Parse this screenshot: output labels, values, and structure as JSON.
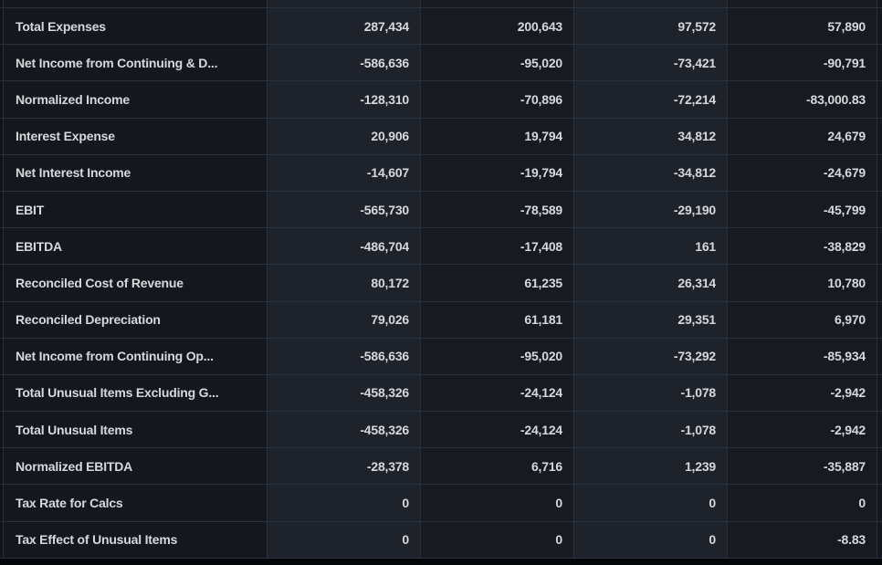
{
  "theme": {
    "background": "#04060a",
    "label_column_bg": "#14171d",
    "value_column_light_bg": "#1e222b",
    "value_column_dark_bg": "#171a21",
    "divider": "#2b313c",
    "text": "#d6d8db"
  },
  "table": {
    "column_count": 4,
    "rows": [
      {
        "label": "Total Expenses",
        "values": [
          "287,434",
          "200,643",
          "97,572",
          "57,890"
        ]
      },
      {
        "label": "Net Income from Continuing & D...",
        "values": [
          "-586,636",
          "-95,020",
          "-73,421",
          "-90,791"
        ]
      },
      {
        "label": "Normalized Income",
        "values": [
          "-128,310",
          "-70,896",
          "-72,214",
          "-83,000.83"
        ]
      },
      {
        "label": "Interest Expense",
        "values": [
          "20,906",
          "19,794",
          "34,812",
          "24,679"
        ]
      },
      {
        "label": "Net Interest Income",
        "values": [
          "-14,607",
          "-19,794",
          "-34,812",
          "-24,679"
        ]
      },
      {
        "label": "EBIT",
        "values": [
          "-565,730",
          "-78,589",
          "-29,190",
          "-45,799"
        ]
      },
      {
        "label": "EBITDA",
        "values": [
          "-486,704",
          "-17,408",
          "161",
          "-38,829"
        ]
      },
      {
        "label": "Reconciled Cost of Revenue",
        "values": [
          "80,172",
          "61,235",
          "26,314",
          "10,780"
        ]
      },
      {
        "label": "Reconciled Depreciation",
        "values": [
          "79,026",
          "61,181",
          "29,351",
          "6,970"
        ]
      },
      {
        "label": "Net Income from Continuing Op...",
        "values": [
          "-586,636",
          "-95,020",
          "-73,292",
          "-85,934"
        ]
      },
      {
        "label": "Total Unusual Items Excluding G...",
        "values": [
          "-458,326",
          "-24,124",
          "-1,078",
          "-2,942"
        ]
      },
      {
        "label": "Total Unusual Items",
        "values": [
          "-458,326",
          "-24,124",
          "-1,078",
          "-2,942"
        ]
      },
      {
        "label": "Normalized EBITDA",
        "values": [
          "-28,378",
          "6,716",
          "1,239",
          "-35,887"
        ]
      },
      {
        "label": "Tax Rate for Calcs",
        "values": [
          "0",
          "0",
          "0",
          "0"
        ]
      },
      {
        "label": "Tax Effect of Unusual Items",
        "values": [
          "0",
          "0",
          "0",
          "-8.83"
        ]
      }
    ]
  }
}
